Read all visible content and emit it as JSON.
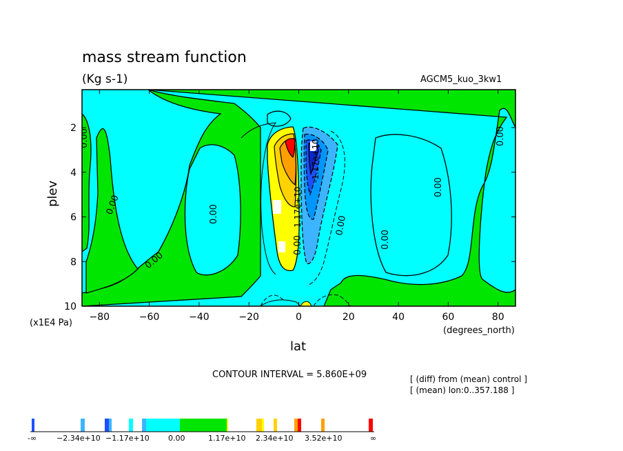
{
  "title": "mass stream function",
  "units": "(Kg s-1)",
  "run_label": "AGCM5_kuo_3kw1",
  "contour_interval_text": "CONTOUR INTERVAL = 5.860E+09",
  "notes": [
    "[ (diff) from (mean) control ]",
    "[ (mean) lon:0..357.188 ]"
  ],
  "colors": {
    "cyan": "#00ffff",
    "green": "#00e600",
    "yellow": "#ffff00",
    "gold": "#ffd200",
    "orange": "#ffa000",
    "red": "#ff0000",
    "blue_light": "#3cb4ff",
    "blue": "#0096ff",
    "blue_dark": "#1e50ff",
    "navy": "#0a28c8"
  },
  "chart_data": {
    "type": "heatmap",
    "title": "mass stream function",
    "subtitle": "(Kg s-1)",
    "xlabel": "lat",
    "x_unit_label": "(degrees_north)",
    "ylabel": "plev",
    "y_unit_label": "(x1E4 Pa)",
    "xlim": [
      -87,
      87
    ],
    "ylim": [
      10,
      0.3
    ],
    "x_ticks": [
      -80,
      -60,
      -40,
      -20,
      0,
      20,
      40,
      60,
      80
    ],
    "y_ticks": [
      2,
      4,
      6,
      8,
      10
    ],
    "contour_interval": 5860000000.0,
    "zero_contour_labels": [
      "0.00",
      "0.00",
      "0.00",
      "0.00",
      "0.00",
      "0.00",
      "0.00",
      "0.00",
      "0.00"
    ],
    "contour_labels": [
      "1.17e+10",
      "-1.17e+10"
    ],
    "features": [
      {
        "name": "positive cell",
        "lat_range": [
          -14,
          -1
        ],
        "plev_range": [
          2,
          8
        ],
        "max_approx": 35000000000.0
      },
      {
        "name": "negative cell",
        "lat_range": [
          1,
          15
        ],
        "plev_range": [
          1.8,
          7.5
        ],
        "min_approx": -29000000000.0
      }
    ],
    "colorbar": {
      "labels": [
        "-∞",
        "−2.34e+10",
        "−1.17e+10",
        "0.00",
        "1.17e+10",
        "2.34e+10",
        "3.52e+10",
        "∞"
      ],
      "levels": [
        -29300000000.0,
        -23400000000.0,
        -17600000000.0,
        -11700000000.0,
        -5860000000.0,
        0,
        5860000000.0,
        11700000000.0,
        17600000000.0,
        23400000000.0,
        29300000000.0,
        35200000000.0
      ]
    }
  }
}
